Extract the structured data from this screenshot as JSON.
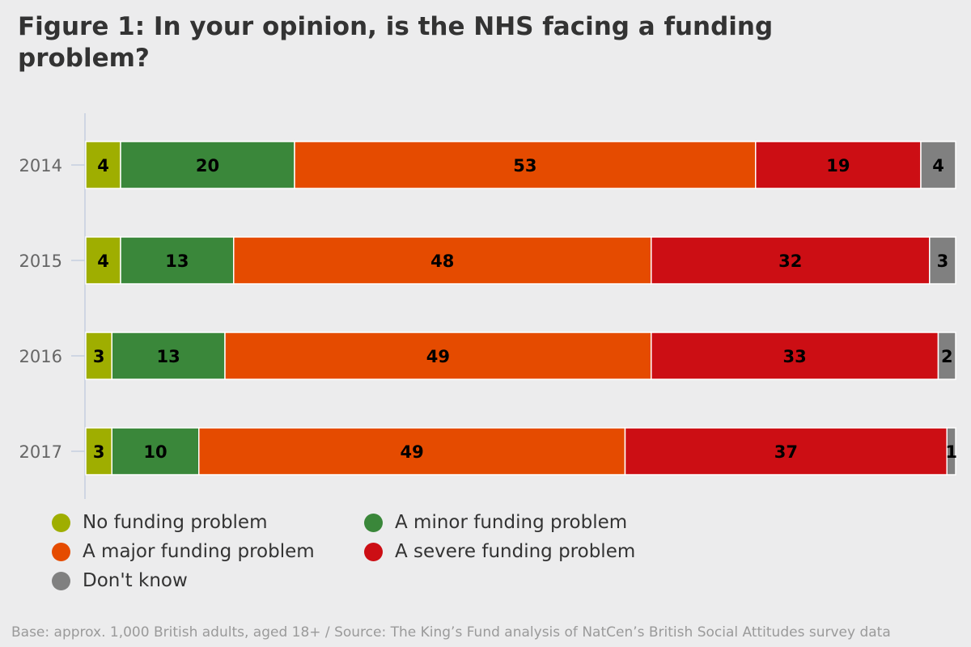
{
  "title": "Figure 1: In your opinion, is the NHS facing a funding problem?",
  "footer": "Base: approx. 1,000 British adults, aged 18+ / Source: The King’s Fund analysis of NatCen’s British Social Attitudes survey data",
  "legend": [
    {
      "label": "No funding problem",
      "color": "#9fae00"
    },
    {
      "label": "A minor funding problem",
      "color": "#3a873a"
    },
    {
      "label": "A major funding problem",
      "color": "#e54b00"
    },
    {
      "label": "A severe funding problem",
      "color": "#cc0e14"
    },
    {
      "label": "Don't know",
      "color": "#808080"
    }
  ],
  "chart_data": {
    "type": "bar",
    "orientation": "horizontal",
    "stacked": true,
    "title": "Figure 1: In your opinion, is the NHS facing a funding problem?",
    "xlabel": "",
    "ylabel": "",
    "xlim": [
      0,
      100
    ],
    "categories": [
      "2014",
      "2015",
      "2016",
      "2017"
    ],
    "series": [
      {
        "name": "No funding problem",
        "color": "#9fae00",
        "values": [
          4,
          4,
          3,
          3
        ]
      },
      {
        "name": "A minor funding problem",
        "color": "#3a873a",
        "values": [
          20,
          13,
          13,
          10
        ]
      },
      {
        "name": "A major funding problem",
        "color": "#e54b00",
        "values": [
          53,
          48,
          49,
          49
        ]
      },
      {
        "name": "A severe funding problem",
        "color": "#cc0e14",
        "values": [
          19,
          32,
          33,
          37
        ]
      },
      {
        "name": "Don't know",
        "color": "#808080",
        "values": [
          4,
          3,
          2,
          1
        ]
      }
    ],
    "legend_position": "bottom-left"
  }
}
